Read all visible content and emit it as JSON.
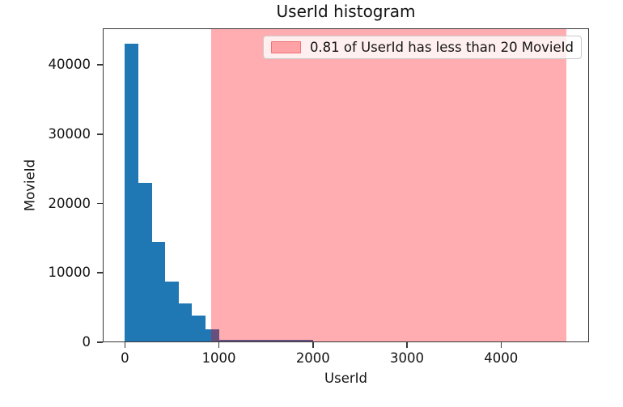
{
  "chart_data": {
    "type": "bar",
    "title": "UserId histogram",
    "xlabel": "UserId",
    "ylabel": "MovieId",
    "xlim": [
      -235,
      4935
    ],
    "ylim": [
      0,
      45250
    ],
    "xticks": [
      0,
      1000,
      2000,
      3000,
      4000
    ],
    "yticks": [
      0,
      10000,
      20000,
      30000,
      40000
    ],
    "grid": false,
    "bar_color": "#1f77b4",
    "bin_width": 143,
    "bins": [
      {
        "x0": 0,
        "x1": 143,
        "count": 43000
      },
      {
        "x0": 143,
        "x1": 286,
        "count": 23000
      },
      {
        "x0": 286,
        "x1": 429,
        "count": 14500
      },
      {
        "x0": 429,
        "x1": 572,
        "count": 8700
      },
      {
        "x0": 572,
        "x1": 715,
        "count": 5600
      },
      {
        "x0": 715,
        "x1": 858,
        "count": 3800
      },
      {
        "x0": 858,
        "x1": 1001,
        "count": 1850
      },
      {
        "x0": 1001,
        "x1": 2002,
        "count": 400
      },
      {
        "x0": 2002,
        "x1": 3718,
        "count": 150
      }
    ],
    "span": {
      "start": 917,
      "end": 4690,
      "fill": "rgba(255,0,10,0.32)",
      "label": "0.81 of UserId has less than 20 MovieId"
    },
    "legend_position": "upper right"
  }
}
